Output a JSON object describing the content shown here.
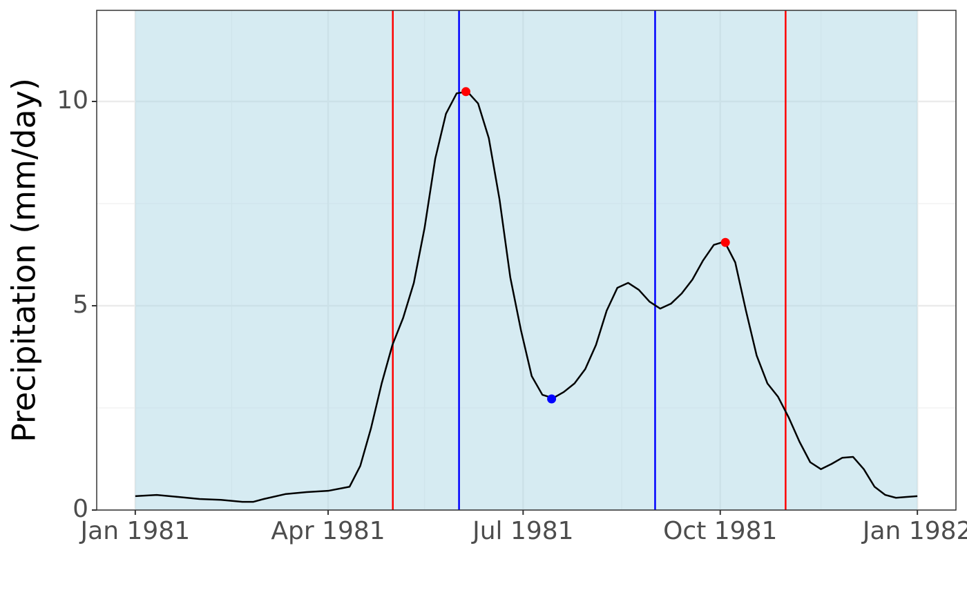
{
  "chart_data": {
    "type": "line",
    "y_label": "Precipitation (mm/day)",
    "x": [
      0,
      10,
      20,
      30,
      40,
      50,
      55,
      60,
      70,
      80,
      90,
      100,
      105,
      110,
      115,
      120,
      125,
      130,
      135,
      140,
      145,
      150,
      155,
      160,
      165,
      170,
      175,
      180,
      185,
      190,
      195,
      200,
      205,
      210,
      215,
      220,
      225,
      230,
      235,
      240,
      245,
      250,
      255,
      260,
      265,
      270,
      275,
      280,
      285,
      290,
      295,
      300,
      305,
      310,
      315,
      320,
      325,
      330,
      335,
      340,
      345,
      350,
      355,
      360,
      365
    ],
    "series": [
      {
        "color": "#000000",
        "values": [
          0.34,
          0.37,
          0.32,
          0.27,
          0.25,
          0.2,
          0.2,
          0.27,
          0.39,
          0.44,
          0.47,
          0.57,
          1.08,
          2.0,
          3.1,
          4.04,
          4.7,
          5.56,
          6.9,
          8.6,
          9.7,
          10.2,
          10.24,
          9.95,
          9.1,
          7.6,
          5.7,
          4.4,
          3.28,
          2.82,
          2.74,
          2.89,
          3.1,
          3.45,
          4.04,
          4.88,
          5.44,
          5.56,
          5.39,
          5.1,
          4.93,
          5.05,
          5.3,
          5.64,
          6.11,
          6.49,
          6.57,
          6.06,
          4.88,
          3.78,
          3.1,
          2.77,
          2.26,
          1.67,
          1.17,
          1.0,
          1.13,
          1.28,
          1.3,
          1.0,
          0.57,
          0.37,
          0.3,
          0.32,
          0.34
        ]
      }
    ],
    "points": [
      {
        "x": 154.3,
        "y": 10.24,
        "color": "#ff0000"
      },
      {
        "x": 194.3,
        "y": 2.72,
        "color": "#0000ff"
      },
      {
        "x": 275.4,
        "y": 6.55,
        "color": "#ff0000"
      }
    ],
    "vlines": [
      {
        "x": 120.2,
        "color": "#ff0000"
      },
      {
        "x": 151.1,
        "color": "#0000ff"
      },
      {
        "x": 242.6,
        "color": "#0000ff"
      },
      {
        "x": 303.5,
        "color": "#ff0000"
      }
    ],
    "shaded_range": [
      0,
      365
    ],
    "shade_color": "rgba(173,216,230,0.5)",
    "xlim": [
      -18,
      383
    ],
    "ylim": [
      0,
      12.23
    ],
    "xticks": [
      {
        "value": 0,
        "label": "Jan 1981"
      },
      {
        "value": 90,
        "label": "Apr 1981"
      },
      {
        "value": 181,
        "label": "Jul 1981"
      },
      {
        "value": 273,
        "label": "Oct 1981"
      },
      {
        "value": 365,
        "label": "Jan 1982"
      }
    ],
    "minor_xticks": [
      45,
      135,
      227,
      320
    ],
    "yticks": [
      0,
      5,
      10
    ],
    "minor_yticks": [
      2.5,
      7.5
    ],
    "grid": true
  }
}
